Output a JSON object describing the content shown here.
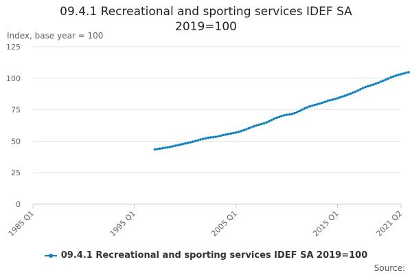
{
  "chart_data": {
    "type": "line",
    "title_line1": "09.4.1 Recreational and sporting services IDEF SA",
    "title_line2": "2019=100",
    "ylabel": "Index, base year = 100",
    "xlabel": "",
    "ylim": [
      0,
      125
    ],
    "yticks": [
      "0",
      "25",
      "50",
      "75",
      "100",
      "125"
    ],
    "xticks": [
      "1985 Q1",
      "1995 Q1",
      "2005 Q1",
      "2015 Q1",
      "2021 Q2"
    ],
    "grid": true,
    "legend_position": "bottom",
    "source_label": "Source:",
    "series": [
      {
        "name": "09.4.1 Recreational and sporting services IDEF SA 2019=100",
        "color": "#0f81bf",
        "start": "1997 Q1",
        "values": [
          43.5,
          43.8,
          44.1,
          44.4,
          44.8,
          45.1,
          45.5,
          45.9,
          46.4,
          46.8,
          47.3,
          47.7,
          48.2,
          48.7,
          49.1,
          49.6,
          50.2,
          50.7,
          51.3,
          51.8,
          52.3,
          52.7,
          53.0,
          53.2,
          53.5,
          53.9,
          54.4,
          54.9,
          55.3,
          55.7,
          56.1,
          56.5,
          56.9,
          57.4,
          58.0,
          58.7,
          59.4,
          60.2,
          61.0,
          61.8,
          62.5,
          63.1,
          63.6,
          64.2,
          64.9,
          65.8,
          66.8,
          67.8,
          68.6,
          69.3,
          70.0,
          70.6,
          71.0,
          71.3,
          71.6,
          72.2,
          73.0,
          74.0,
          75.0,
          76.0,
          76.9,
          77.6,
          78.2,
          78.8,
          79.3,
          79.9,
          80.5,
          81.2,
          81.9,
          82.5,
          83.0,
          83.5,
          84.1,
          84.8,
          85.5,
          86.2,
          86.9,
          87.7,
          88.5,
          89.3,
          90.2,
          91.2,
          92.2,
          93.0,
          93.7,
          94.3,
          94.9,
          95.6,
          96.4,
          97.2,
          98.0,
          98.9,
          99.8,
          100.6,
          101.4,
          102.1,
          102.7,
          103.2,
          103.7,
          104.3,
          104.8
        ]
      }
    ]
  }
}
